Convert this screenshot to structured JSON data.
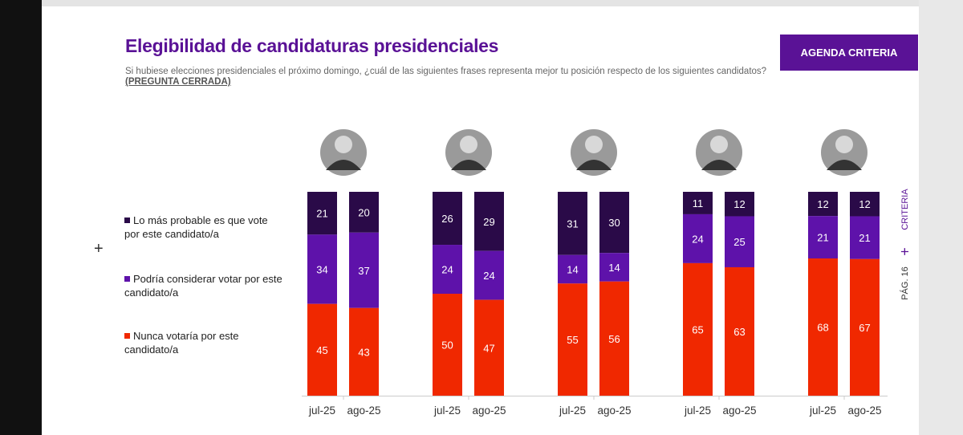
{
  "header": {
    "title": "Elegibilidad de candidaturas presidenciales",
    "subtitle": "Si hubiese elecciones presidenciales el próximo domingo, ¿cuál de las siguientes frases representa mejor tu posición respecto de los siguientes candidatos?",
    "subtitle_tag": "(PREGUNTA CERRADA)",
    "button": "AGENDA CRITERIA"
  },
  "side": {
    "brand": "CRITERIA",
    "page": "PÁG. 16",
    "plus": "+"
  },
  "left_plus": "+",
  "colors": {
    "dark": "#2a0a48",
    "purple": "#5e12aa",
    "red": "#f02800",
    "brand": "#5a1296"
  },
  "chart_data": {
    "type": "stacked-bar",
    "legend_position": "left",
    "ylim": [
      0,
      100
    ],
    "series": [
      {
        "name": "Lo más probable es que vote por este candidato/a",
        "color": "#2a0a48"
      },
      {
        "name": "Podría considerar votar por este candidato/a",
        "color": "#5e12aa"
      },
      {
        "name": "Nunca votaría por este candidato/a",
        "color": "#f02800"
      }
    ],
    "groups": [
      {
        "bars": [
          {
            "label": "jul-25",
            "values": [
              21,
              34,
              45
            ]
          },
          {
            "label": "ago-25",
            "values": [
              20,
              37,
              43
            ]
          }
        ]
      },
      {
        "bars": [
          {
            "label": "jul-25",
            "values": [
              26,
              24,
              50
            ]
          },
          {
            "label": "ago-25",
            "values": [
              29,
              24,
              47
            ]
          }
        ]
      },
      {
        "bars": [
          {
            "label": "jul-25",
            "values": [
              31,
              14,
              55
            ]
          },
          {
            "label": "ago-25",
            "values": [
              30,
              14,
              56
            ]
          }
        ]
      },
      {
        "bars": [
          {
            "label": "jul-25",
            "values": [
              11,
              24,
              65
            ]
          },
          {
            "label": "ago-25",
            "values": [
              12,
              25,
              63
            ]
          }
        ]
      },
      {
        "bars": [
          {
            "label": "jul-25",
            "values": [
              12,
              21,
              68
            ]
          },
          {
            "label": "ago-25",
            "values": [
              12,
              21,
              67
            ]
          }
        ]
      }
    ]
  }
}
